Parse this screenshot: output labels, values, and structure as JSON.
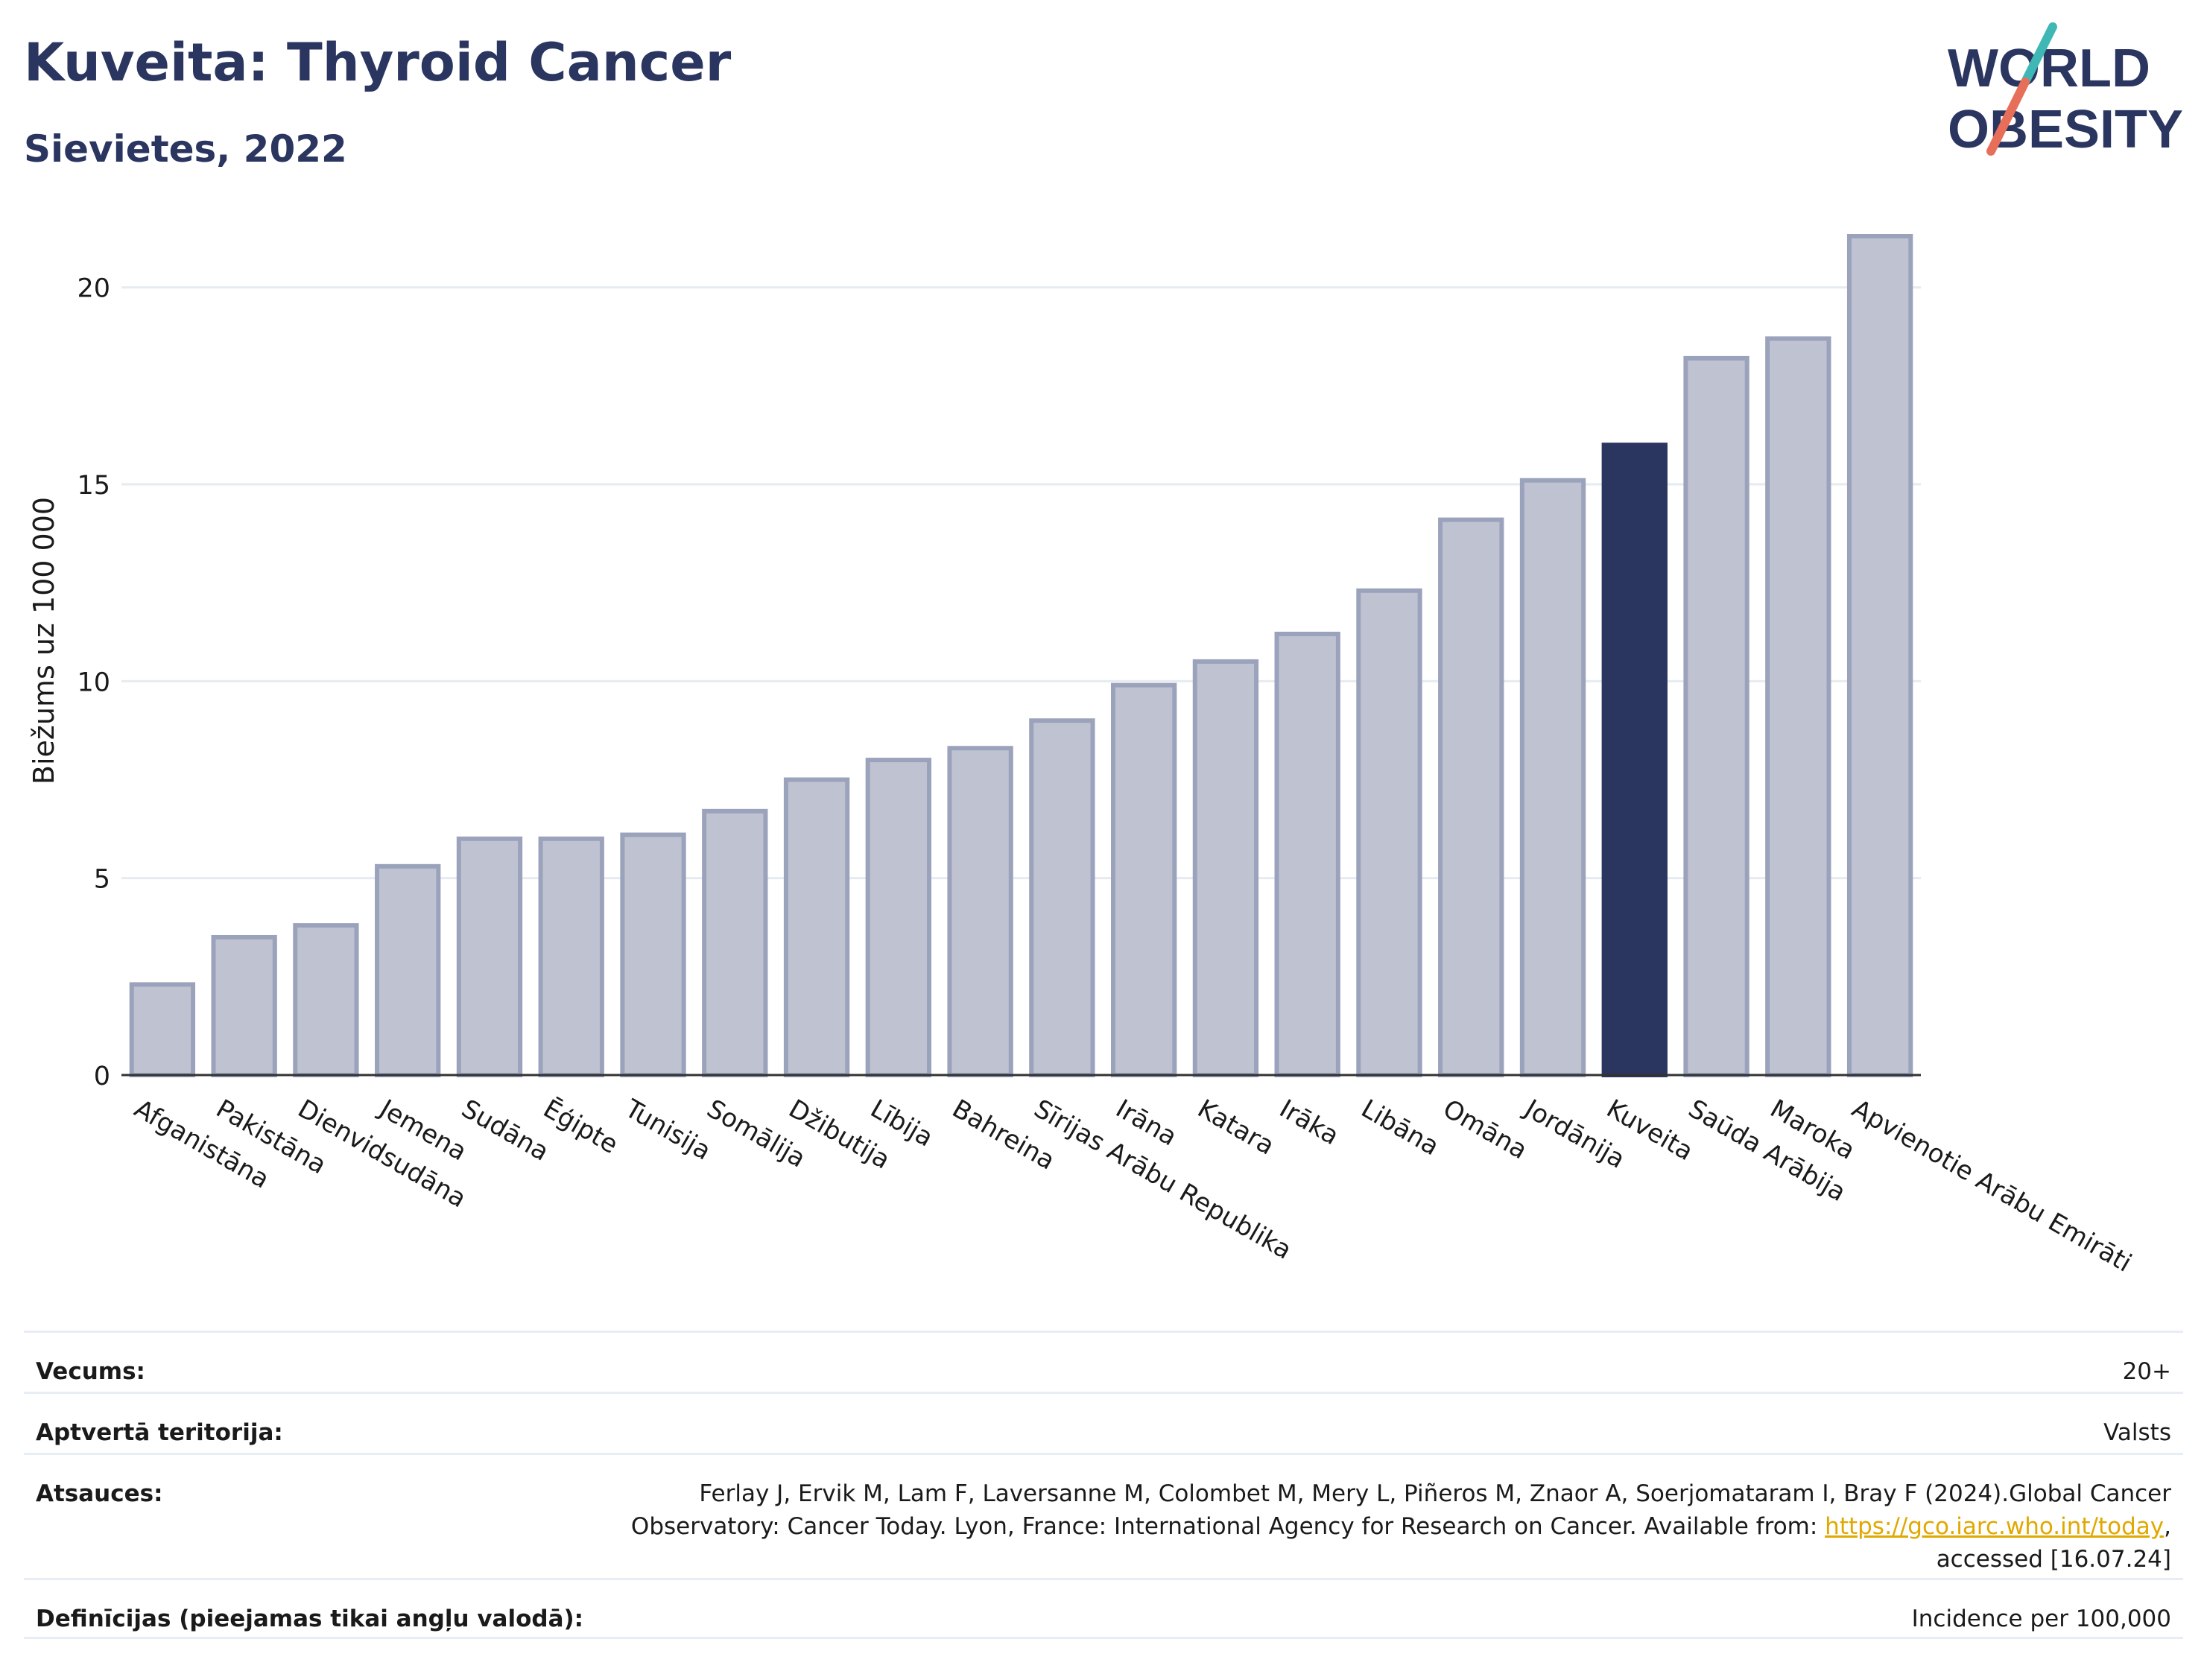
{
  "header": {
    "title": "Kuveita: Thyroid Cancer",
    "subtitle": "Sievietes, 2022",
    "logo_line1": "WORLD",
    "logo_line2": "OBESITY"
  },
  "colors": {
    "highlight": "#2a3560",
    "bar_fill": "#bfc3d1",
    "bar_stroke": "#9ba2bb",
    "title": "#2a3560",
    "logo_teal": "#3fb8b5",
    "logo_coral": "#e76f5a",
    "link": "#e0a800"
  },
  "chart_data": {
    "type": "bar",
    "ylabel": "Biežums uz 100 000",
    "xlabel": "",
    "ylim": [
      0,
      22
    ],
    "yticks": [
      0,
      5,
      10,
      15,
      20
    ],
    "grid": true,
    "highlight_category": "Kuveita",
    "categories": [
      "Afganistāna",
      "Pakistāna",
      "Dienvidsudāna",
      "Jemena",
      "Sudāna",
      "Ēģipte",
      "Tunisija",
      "Somālija",
      "Džibutija",
      "Lībija",
      "Bahreina",
      "Sīrijas Arābu Republika",
      "Irāna",
      "Katara",
      "Irāka",
      "Libāna",
      "Omāna",
      "Jordānija",
      "Kuveita",
      "Saūda Arābija",
      "Maroka",
      "Apvienotie Arābu Emirāti"
    ],
    "values": [
      2.3,
      3.5,
      3.8,
      5.3,
      6.0,
      6.0,
      6.1,
      6.7,
      7.5,
      8.0,
      8.3,
      9.0,
      9.9,
      10.5,
      11.2,
      12.3,
      14.1,
      15.1,
      16.0,
      18.2,
      18.7,
      21.3
    ]
  },
  "footer": {
    "age_label": "Vecums:",
    "age_value": "20+",
    "coverage_label": "Aptvertā teritorija:",
    "coverage_value": "Valsts",
    "refs_label": "Atsauces:",
    "refs_line1": "Ferlay J, Ervik M, Lam F, Laversanne M, Colombet M, Mery L, Piñeros M, Znaor A, Soerjomataram I, Bray F (2024).Global Cancer",
    "refs_line2": "Observatory: Cancer Today. Lyon, France: International Agency for Research on Cancer. Available from: ",
    "refs_link": "https://gco.iarc.who.int/today",
    "refs_line2_end": ",",
    "refs_line3": "accessed [16.07.24]",
    "defs_label": "Definīcijas (pieejamas tikai angļu valodā):",
    "defs_value": "Incidence per 100,000"
  }
}
